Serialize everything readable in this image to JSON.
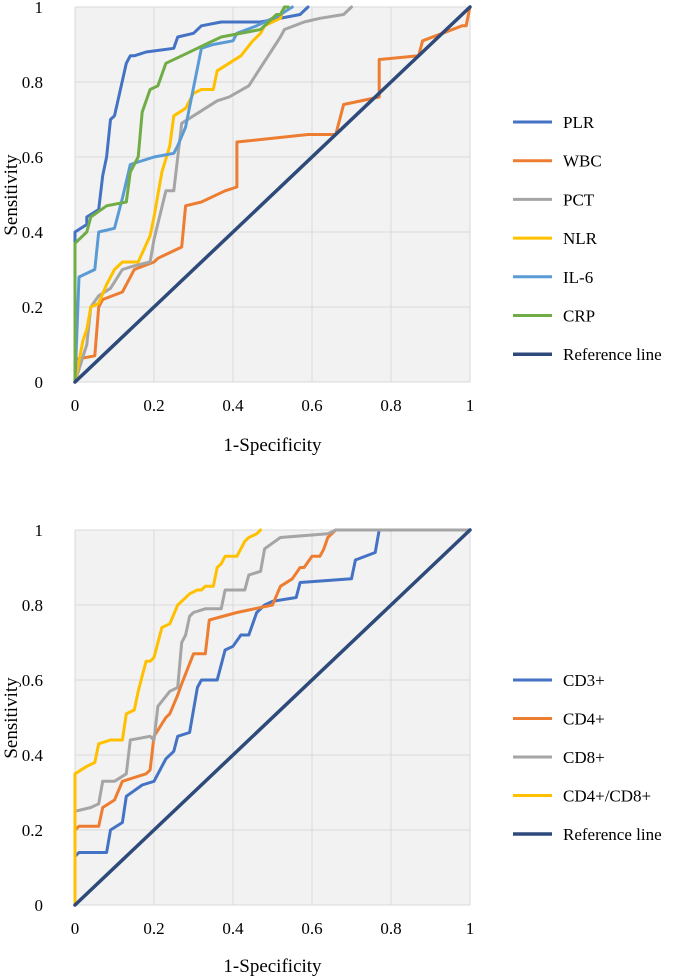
{
  "chart_data": [
    {
      "type": "line",
      "title": "",
      "xlabel": "1-Specificity",
      "ylabel": "Sensitivity",
      "xlim": [
        0,
        1
      ],
      "ylim": [
        0,
        1
      ],
      "xticks": [
        "0",
        "0.2",
        "0.4",
        "0.6",
        "0.8",
        "1"
      ],
      "yticks": [
        "0",
        "0.2",
        "0.4",
        "0.6",
        "0.8",
        "1"
      ],
      "grid": true,
      "legend_position": "right",
      "series": [
        {
          "name": "PLR",
          "color": "#4472C4",
          "x": [
            0,
            0,
            0.03,
            0.03,
            0.06,
            0.07,
            0.08,
            0.09,
            0.1,
            0.13,
            0.14,
            0.15,
            0.18,
            0.25,
            0.26,
            0.3,
            0.32,
            0.37,
            0.47,
            0.57,
            0.59
          ],
          "y": [
            0,
            0.4,
            0.42,
            0.44,
            0.46,
            0.55,
            0.6,
            0.7,
            0.71,
            0.85,
            0.87,
            0.87,
            0.88,
            0.89,
            0.92,
            0.93,
            0.95,
            0.96,
            0.96,
            0.98,
            1.0
          ]
        },
        {
          "name": "WBC",
          "color": "#ED7D31",
          "x": [
            0,
            0,
            0.05,
            0.06,
            0.07,
            0.12,
            0.15,
            0.2,
            0.21,
            0.27,
            0.28,
            0.32,
            0.38,
            0.41,
            0.41,
            0.59,
            0.66,
            0.67,
            0.68,
            0.77,
            0.77,
            0.87,
            0.88,
            0.98,
            0.99,
            1.0
          ],
          "y": [
            0,
            0.06,
            0.07,
            0.2,
            0.22,
            0.24,
            0.3,
            0.32,
            0.33,
            0.36,
            0.47,
            0.48,
            0.51,
            0.52,
            0.64,
            0.66,
            0.66,
            0.7,
            0.74,
            0.76,
            0.86,
            0.87,
            0.91,
            0.95,
            0.95,
            1.0
          ]
        },
        {
          "name": "PCT",
          "color": "#A5A5A5",
          "x": [
            0,
            0.03,
            0.04,
            0.06,
            0.09,
            0.12,
            0.15,
            0.19,
            0.2,
            0.23,
            0.25,
            0.27,
            0.3,
            0.36,
            0.39,
            0.44,
            0.52,
            0.53,
            0.58,
            0.62,
            0.68,
            0.7
          ],
          "y": [
            0,
            0.1,
            0.2,
            0.23,
            0.25,
            0.3,
            0.31,
            0.32,
            0.38,
            0.51,
            0.51,
            0.69,
            0.71,
            0.75,
            0.76,
            0.79,
            0.92,
            0.94,
            0.96,
            0.97,
            0.98,
            1.0
          ]
        },
        {
          "name": "NLR",
          "color": "#FFC000",
          "x": [
            0,
            0.02,
            0.03,
            0.04,
            0.06,
            0.08,
            0.1,
            0.12,
            0.16,
            0.19,
            0.2,
            0.22,
            0.24,
            0.25,
            0.28,
            0.3,
            0.32,
            0.35,
            0.36,
            0.42,
            0.45,
            0.47,
            0.48,
            0.52,
            0.53
          ],
          "y": [
            0,
            0.11,
            0.14,
            0.2,
            0.21,
            0.26,
            0.3,
            0.32,
            0.32,
            0.39,
            0.44,
            0.56,
            0.63,
            0.71,
            0.73,
            0.77,
            0.78,
            0.78,
            0.83,
            0.87,
            0.91,
            0.93,
            0.95,
            0.97,
            1.0
          ]
        },
        {
          "name": "IL-6",
          "color": "#5B9BD5",
          "x": [
            0,
            0.01,
            0.05,
            0.06,
            0.1,
            0.12,
            0.14,
            0.2,
            0.25,
            0.26,
            0.28,
            0.32,
            0.35,
            0.4,
            0.41,
            0.46,
            0.48,
            0.5,
            0.52,
            0.55
          ],
          "y": [
            0,
            0.28,
            0.3,
            0.4,
            0.41,
            0.49,
            0.58,
            0.6,
            0.61,
            0.63,
            0.68,
            0.89,
            0.9,
            0.91,
            0.93,
            0.95,
            0.96,
            0.97,
            0.98,
            1.0
          ]
        },
        {
          "name": "CRP",
          "color": "#70AD47",
          "x": [
            0,
            0,
            0.03,
            0.04,
            0.08,
            0.13,
            0.14,
            0.16,
            0.17,
            0.19,
            0.21,
            0.23,
            0.27,
            0.33,
            0.37,
            0.47,
            0.49,
            0.51,
            0.52,
            0.53,
            0.54
          ],
          "y": [
            0,
            0.37,
            0.4,
            0.44,
            0.47,
            0.48,
            0.56,
            0.6,
            0.72,
            0.78,
            0.79,
            0.85,
            0.87,
            0.9,
            0.92,
            0.94,
            0.96,
            0.98,
            0.98,
            1.0,
            1.0
          ]
        },
        {
          "name": "Reference line",
          "color": "#2E4A7A",
          "x": [
            0,
            1
          ],
          "y": [
            0,
            1
          ]
        }
      ]
    },
    {
      "type": "line",
      "title": "",
      "xlabel": "1-Specificity",
      "ylabel": "Sensitivity",
      "xlim": [
        0,
        1
      ],
      "ylim": [
        0,
        1
      ],
      "xticks": [
        "0",
        "0.2",
        "0.4",
        "0.6",
        "0.8",
        "1"
      ],
      "yticks": [
        "0",
        "0.2",
        "0.4",
        "0.6",
        "0.8",
        "1"
      ],
      "grid": true,
      "legend_position": "right",
      "series": [
        {
          "name": "CD3+",
          "color": "#4472C4",
          "x": [
            0,
            0,
            0.01,
            0.08,
            0.09,
            0.12,
            0.13,
            0.17,
            0.2,
            0.23,
            0.25,
            0.26,
            0.29,
            0.31,
            0.32,
            0.36,
            0.38,
            0.4,
            0.42,
            0.44,
            0.46,
            0.48,
            0.5,
            0.56,
            0.57,
            0.7,
            0.71,
            0.76,
            0.77
          ],
          "y": [
            0,
            0.13,
            0.14,
            0.14,
            0.2,
            0.22,
            0.29,
            0.32,
            0.33,
            0.39,
            0.41,
            0.45,
            0.46,
            0.58,
            0.6,
            0.6,
            0.68,
            0.69,
            0.72,
            0.72,
            0.78,
            0.8,
            0.81,
            0.82,
            0.86,
            0.87,
            0.92,
            0.94,
            1.0
          ]
        },
        {
          "name": "CD4+",
          "color": "#ED7D31",
          "x": [
            0,
            0,
            0.01,
            0.06,
            0.07,
            0.1,
            0.12,
            0.18,
            0.19,
            0.2,
            0.23,
            0.24,
            0.26,
            0.27,
            0.3,
            0.33,
            0.34,
            0.41,
            0.5,
            0.52,
            0.55,
            0.57,
            0.58,
            0.6,
            0.62,
            0.63,
            0.64,
            0.66
          ],
          "y": [
            0,
            0.2,
            0.21,
            0.21,
            0.26,
            0.28,
            0.33,
            0.35,
            0.36,
            0.45,
            0.5,
            0.51,
            0.56,
            0.59,
            0.67,
            0.67,
            0.76,
            0.78,
            0.8,
            0.85,
            0.87,
            0.9,
            0.9,
            0.93,
            0.93,
            0.95,
            0.98,
            1.0
          ]
        },
        {
          "name": "CD8+",
          "color": "#A5A5A5",
          "x": [
            0,
            0,
            0.04,
            0.06,
            0.07,
            0.1,
            0.13,
            0.14,
            0.19,
            0.2,
            0.21,
            0.24,
            0.26,
            0.27,
            0.28,
            0.29,
            0.3,
            0.33,
            0.37,
            0.38,
            0.43,
            0.44,
            0.47,
            0.48,
            0.52,
            0.64,
            0.66,
            1.0
          ],
          "y": [
            0,
            0.25,
            0.26,
            0.27,
            0.33,
            0.33,
            0.35,
            0.44,
            0.45,
            0.44,
            0.53,
            0.57,
            0.58,
            0.7,
            0.72,
            0.77,
            0.78,
            0.79,
            0.79,
            0.84,
            0.84,
            0.88,
            0.89,
            0.95,
            0.98,
            0.99,
            1.0,
            1.0
          ]
        },
        {
          "name": "CD4+/CD8+",
          "color": "#FFC000",
          "x": [
            0,
            0,
            0.03,
            0.05,
            0.06,
            0.09,
            0.12,
            0.13,
            0.15,
            0.16,
            0.18,
            0.19,
            0.2,
            0.22,
            0.24,
            0.26,
            0.27,
            0.29,
            0.31,
            0.32,
            0.33,
            0.35,
            0.36,
            0.37,
            0.38,
            0.41,
            0.43,
            0.44,
            0.46,
            0.47
          ],
          "y": [
            0,
            0.35,
            0.37,
            0.38,
            0.43,
            0.44,
            0.44,
            0.51,
            0.52,
            0.57,
            0.65,
            0.65,
            0.66,
            0.74,
            0.75,
            0.8,
            0.81,
            0.83,
            0.84,
            0.84,
            0.85,
            0.85,
            0.9,
            0.91,
            0.93,
            0.93,
            0.97,
            0.98,
            0.99,
            1.0
          ]
        },
        {
          "name": "Reference line",
          "color": "#2E4A7A",
          "x": [
            0,
            1
          ],
          "y": [
            0,
            1
          ]
        }
      ]
    }
  ]
}
